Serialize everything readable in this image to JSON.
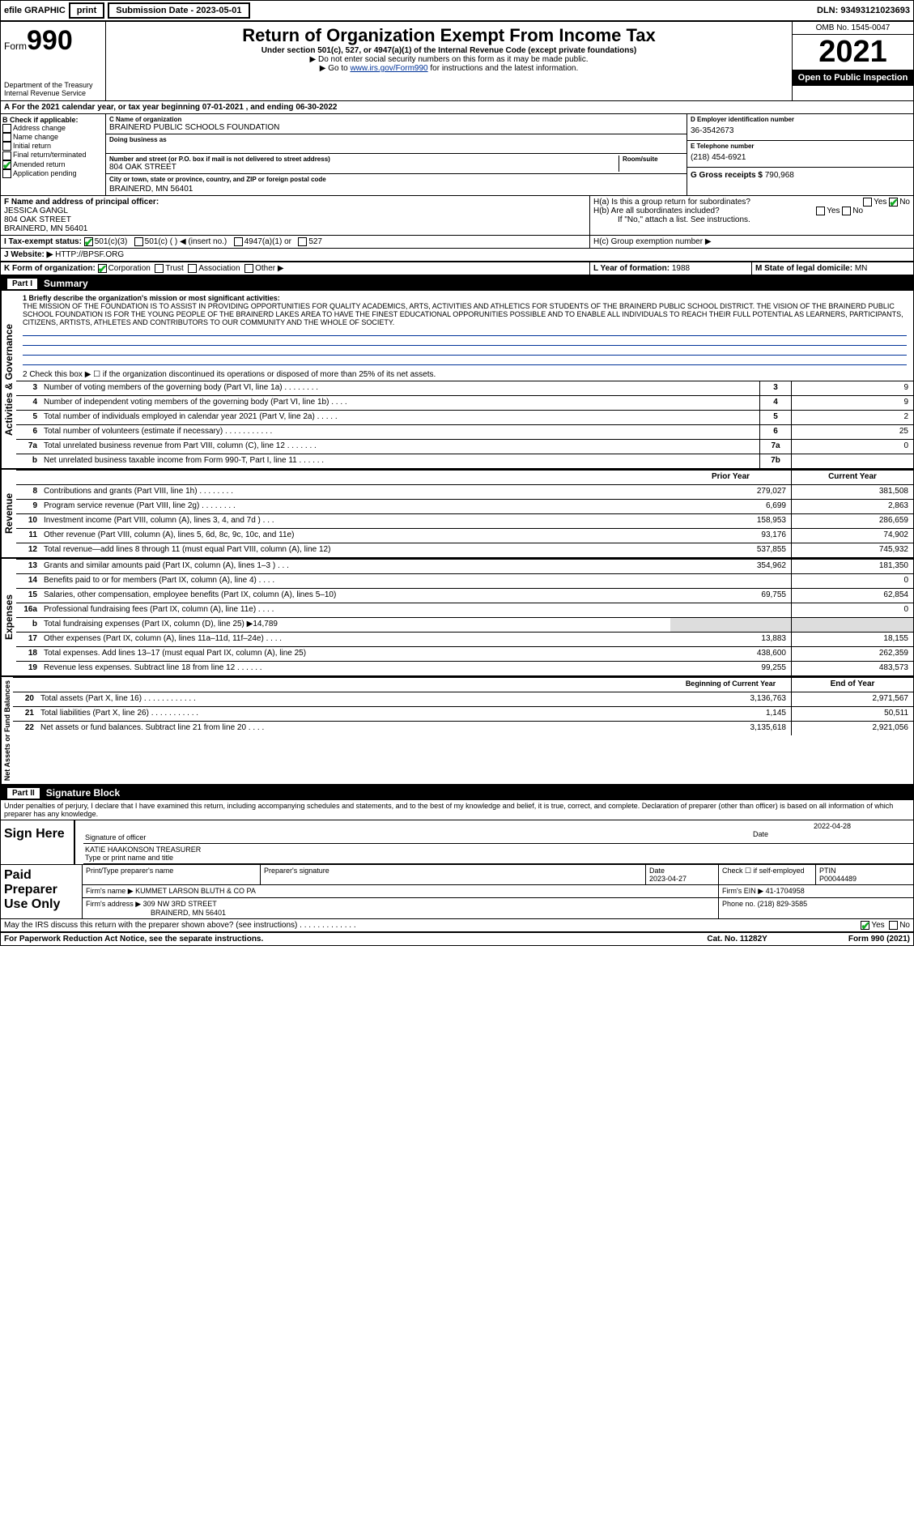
{
  "top": {
    "efile": "efile GRAPHIC",
    "print": "print",
    "subdate_label": "Submission Date - 2023-05-01",
    "dln": "DLN: 93493121023693"
  },
  "header": {
    "form": "Form",
    "form_num": "990",
    "title": "Return of Organization Exempt From Income Tax",
    "subtitle": "Under section 501(c), 527, or 4947(a)(1) of the Internal Revenue Code (except private foundations)",
    "note1": "▶ Do not enter social security numbers on this form as it may be made public.",
    "note2_pre": "▶ Go to ",
    "note2_link": "www.irs.gov/Form990",
    "note2_post": " for instructions and the latest information.",
    "omb": "OMB No. 1545-0047",
    "year": "2021",
    "open": "Open to Public Inspection",
    "dept": "Department of the Treasury Internal Revenue Service"
  },
  "a": {
    "line": "A For the 2021 calendar year, or tax year beginning 07-01-2021 , and ending 06-30-2022"
  },
  "b": {
    "header": "B Check if applicable:",
    "addr": "Address change",
    "name": "Name change",
    "initial": "Initial return",
    "final": "Final return/terminated",
    "amended": "Amended return",
    "app": "Application pending"
  },
  "c": {
    "label": "C Name of organization",
    "name": "BRAINERD PUBLIC SCHOOLS FOUNDATION",
    "dba": "Doing business as",
    "addr_label": "Number and street (or P.O. box if mail is not delivered to street address)",
    "addr": "804 OAK STREET",
    "room": "Room/suite",
    "city_label": "City or town, state or province, country, and ZIP or foreign postal code",
    "city": "BRAINERD, MN  56401"
  },
  "d": {
    "label": "D Employer identification number",
    "val": "36-3542673"
  },
  "e": {
    "label": "E Telephone number",
    "val": "(218) 454-6921"
  },
  "g": {
    "label": "G Gross receipts $",
    "val": "790,968"
  },
  "f": {
    "label": "F Name and address of principal officer:",
    "name": "JESSICA GANGL",
    "addr": "804 OAK STREET",
    "city": "BRAINERD, MN  56401"
  },
  "h": {
    "a": "H(a)  Is this a group return for subordinates?",
    "b": "H(b)  Are all subordinates included?",
    "note": "If \"No,\" attach a list. See instructions.",
    "c": "H(c)  Group exemption number ▶",
    "yes": "Yes",
    "no": "No"
  },
  "i": {
    "label": "I  Tax-exempt status:",
    "s1": "501(c)(3)",
    "s2": "501(c) (  ) ◀ (insert no.)",
    "s3": "4947(a)(1) or",
    "s4": "527"
  },
  "j": {
    "label": "J  Website: ▶",
    "val": "HTTP://BPSF.ORG"
  },
  "k": {
    "label": "K Form of organization:",
    "corp": "Corporation",
    "trust": "Trust",
    "assoc": "Association",
    "other": "Other ▶"
  },
  "l": {
    "label": "L Year of formation:",
    "val": "1988"
  },
  "m": {
    "label": "M State of legal domicile:",
    "val": "MN"
  },
  "part1": {
    "label": "Part I",
    "title": "Summary"
  },
  "gov": {
    "label": "Activities & Governance",
    "mission_label": "1  Briefly describe the organization's mission or most significant activities:",
    "mission": "THE MISSION OF THE FOUNDATION IS TO ASSIST IN PROVIDING OPPORTUNITIES FOR QUALITY ACADEMICS, ARTS, ACTIVITIES AND ATHLETICS FOR STUDENTS OF THE BRAINERD PUBLIC SCHOOL DISTRICT. THE VISION OF THE BRAINERD PUBLIC SCHOOL FOUNDATION IS FOR THE YOUNG PEOPLE OF THE BRAINERD LAKES AREA TO HAVE THE FINEST EDUCATIONAL OPPORUNITIES POSSIBLE AND TO ENABLE ALL INDIVIDUALS TO REACH THEIR FULL POTENTIAL AS LEARNERS, PARTICIPANTS, CITIZENS, ARTISTS, ATHLETES AND CONTRIBUTORS TO OUR COMMUNITY AND THE WHOLE OF SOCIETY.",
    "l2": "2  Check this box ▶ ☐ if the organization discontinued its operations or disposed of more than 25% of its net assets.",
    "rows": [
      {
        "n": "3",
        "d": "Number of voting members of the governing body (Part VI, line 1a)  .    .    .    .    .    .    .    .",
        "ln": "3",
        "v": "9"
      },
      {
        "n": "4",
        "d": "Number of independent voting members of the governing body (Part VI, line 1b)   .    .    .    .",
        "ln": "4",
        "v": "9"
      },
      {
        "n": "5",
        "d": "Total number of individuals employed in calendar year 2021 (Part V, line 2a)   .    .    .    .    .",
        "ln": "5",
        "v": "2"
      },
      {
        "n": "6",
        "d": "Total number of volunteers (estimate if necessary)    .    .    .    .    .    .    .    .    .    .    .",
        "ln": "6",
        "v": "25"
      },
      {
        "n": "7a",
        "d": "Total unrelated business revenue from Part VIII, column (C), line 12   .    .    .    .    .    .    .",
        "ln": "7a",
        "v": "0"
      },
      {
        "n": "b",
        "d": "Net unrelated business taxable income from Form 990-T, Part I, line 11  .    .    .    .    .    .",
        "ln": "7b",
        "v": ""
      }
    ]
  },
  "rev": {
    "label": "Revenue",
    "header": {
      "py": "Prior Year",
      "cy": "Current Year"
    },
    "rows": [
      {
        "n": "8",
        "d": "Contributions and grants (Part VIII, line 1h)  .    .    .    .    .    .    .    .",
        "py": "279,027",
        "cy": "381,508"
      },
      {
        "n": "9",
        "d": "Program service revenue (Part VIII, line 2g)  .    .    .    .    .    .    .    .",
        "py": "6,699",
        "cy": "2,863"
      },
      {
        "n": "10",
        "d": "Investment income (Part VIII, column (A), lines 3, 4, and 7d )   .    .    .",
        "py": "158,953",
        "cy": "286,659"
      },
      {
        "n": "11",
        "d": "Other revenue (Part VIII, column (A), lines 5, 6d, 8c, 9c, 10c, and 11e)",
        "py": "93,176",
        "cy": "74,902"
      },
      {
        "n": "12",
        "d": "Total revenue—add lines 8 through 11 (must equal Part VIII, column (A), line 12)",
        "py": "537,855",
        "cy": "745,932"
      }
    ]
  },
  "exp": {
    "label": "Expenses",
    "rows": [
      {
        "n": "13",
        "d": "Grants and similar amounts paid (Part IX, column (A), lines 1–3 )   .    .    .",
        "py": "354,962",
        "cy": "181,350"
      },
      {
        "n": "14",
        "d": "Benefits paid to or for members (Part IX, column (A), line 4)   .    .    .    .",
        "py": "",
        "cy": "0"
      },
      {
        "n": "15",
        "d": "Salaries, other compensation, employee benefits (Part IX, column (A), lines 5–10)",
        "py": "69,755",
        "cy": "62,854"
      },
      {
        "n": "16a",
        "d": "Professional fundraising fees (Part IX, column (A), line 11e)  .    .    .    .",
        "py": "",
        "cy": "0"
      },
      {
        "n": "b",
        "d": "Total fundraising expenses (Part IX, column (D), line 25) ▶14,789",
        "py": "gray",
        "cy": "gray"
      },
      {
        "n": "17",
        "d": "Other expenses (Part IX, column (A), lines 11a–11d, 11f–24e)   .    .    .    .",
        "py": "13,883",
        "cy": "18,155"
      },
      {
        "n": "18",
        "d": "Total expenses. Add lines 13–17 (must equal Part IX, column (A), line 25)",
        "py": "438,600",
        "cy": "262,359"
      },
      {
        "n": "19",
        "d": "Revenue less expenses. Subtract line 18 from line 12  .    .    .    .    .    .",
        "py": "99,255",
        "cy": "483,573"
      }
    ]
  },
  "net": {
    "label": "Net Assets or Fund Balances",
    "header": {
      "py": "Beginning of Current Year",
      "cy": "End of Year"
    },
    "rows": [
      {
        "n": "20",
        "d": "Total assets (Part X, line 16)  .    .    .    .    .    .    .    .    .    .    .    .",
        "py": "3,136,763",
        "cy": "2,971,567"
      },
      {
        "n": "21",
        "d": "Total liabilities (Part X, line 26)  .    .    .    .    .    .    .    .    .    .    .",
        "py": "1,145",
        "cy": "50,511"
      },
      {
        "n": "22",
        "d": "Net assets or fund balances. Subtract line 21 from line 20    .    .    .    .",
        "py": "3,135,618",
        "cy": "2,921,056"
      }
    ]
  },
  "part2": {
    "label": "Part II",
    "title": "Signature Block"
  },
  "sig": {
    "decl": "Under penalties of perjury, I declare that I have examined this return, including accompanying schedules and statements, and to the best of my knowledge and belief, it is true, correct, and complete. Declaration of preparer (other than officer) is based on all information of which preparer has any knowledge.",
    "here": "Sign Here",
    "officer": "Signature of officer",
    "date": "Date",
    "date_val": "2022-04-28",
    "name": "KATIE HAAKONSON  TREASURER",
    "name_label": "Type or print name and title"
  },
  "paid": {
    "label": "Paid Preparer Use Only",
    "h1": "Print/Type preparer's name",
    "h2": "Preparer's signature",
    "h3": "Date",
    "h3v": "2023-04-27",
    "h4": "Check ☐ if self-employed",
    "h5": "PTIN",
    "h5v": "P00044489",
    "firm_label": "Firm's name    ▶",
    "firm": "KUMMET LARSON BLUTH & CO PA",
    "ein_label": "Firm's EIN ▶",
    "ein": "41-1704958",
    "addr_label": "Firm's address ▶",
    "addr1": "309 NW 3RD STREET",
    "addr2": "BRAINERD, MN  56401",
    "phone_label": "Phone no.",
    "phone": "(218) 829-3585"
  },
  "footer": {
    "discuss": "May the IRS discuss this return with the preparer shown above? (see instructions)   .    .    .    .    .    .    .    .    .    .    .    .    .",
    "yes": "Yes",
    "no": "No",
    "paperwork": "For Paperwork Reduction Act Notice, see the separate instructions.",
    "cat": "Cat. No. 11282Y",
    "form": "Form 990 (2021)"
  }
}
